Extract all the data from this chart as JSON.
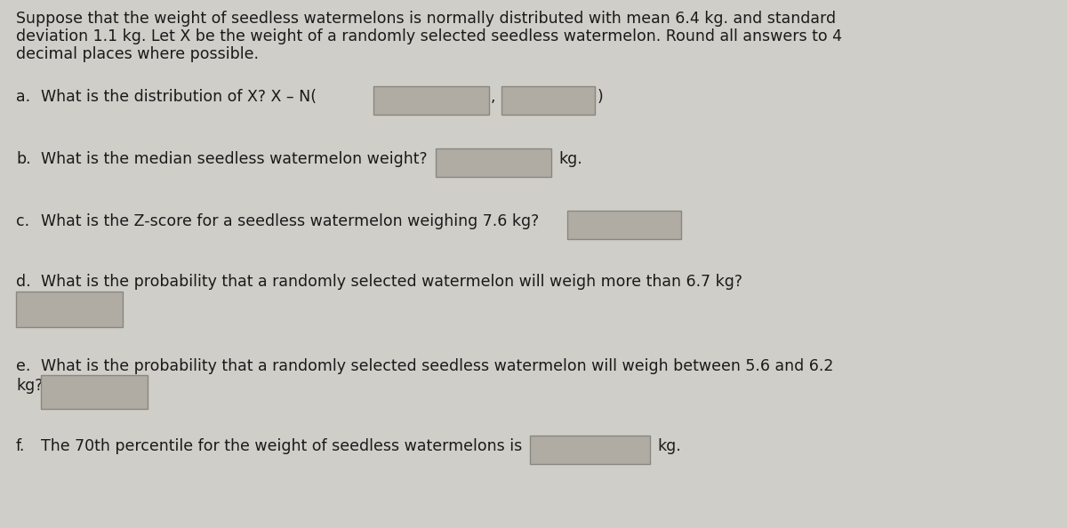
{
  "background_color": "#d0cec8",
  "text_color": "#1a1a1a",
  "box_fill_color": "#b0aca4",
  "box_edge_color": "#888880",
  "font_size": 12.5,
  "title_lines": [
    "Suppose that the weight of seedless watermelons is normally distributed with mean 6.4 kg. and standard",
    "deviation 1.1 kg. Let X be the weight of a randomly selected seedless watermelon. Round all answers to 4",
    "decimal places where possible."
  ],
  "q_a_label": "a.",
  "q_a_text": "What is the distribution of X? X – N(",
  "q_a_close": ")",
  "q_b_label": "b.",
  "q_b_text": "What is the median seedless watermelon weight?",
  "q_b_suffix": "kg.",
  "q_c_label": "c.",
  "q_c_text": "What is the Z-score for a seedless watermelon weighing 7.6 kg?",
  "q_d_label": "d.",
  "q_d_text": "What is the probability that a randomly selected watermelon will weigh more than 6.7 kg?",
  "q_e_label": "e.",
  "q_e_text": "What is the probability that a randomly selected seedless watermelon will weigh between 5.6 and 6.2",
  "q_e_text2": "kg?",
  "q_f_label": "f.",
  "q_f_text": "The 70th percentile for the weight of seedless watermelons is",
  "q_f_suffix": "kg."
}
